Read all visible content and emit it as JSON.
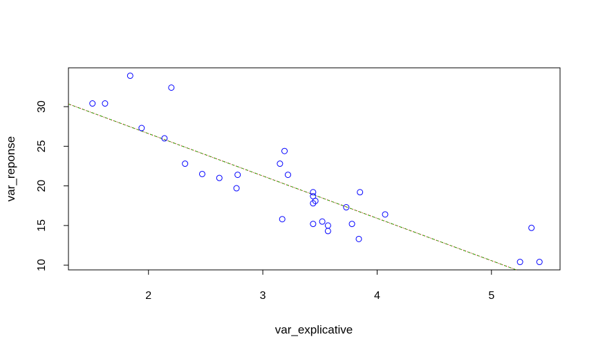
{
  "chart_data": {
    "type": "scatter",
    "title": "",
    "xlabel": "var_explicative",
    "ylabel": "var_reponse",
    "xlim": [
      1.3,
      5.6
    ],
    "ylim": [
      9.4,
      34.9
    ],
    "xticks": [
      2,
      3,
      4,
      5
    ],
    "yticks": [
      10,
      15,
      20,
      25,
      30
    ],
    "grid": false,
    "legend": "none",
    "point_color": "#0000ff",
    "points": [
      {
        "x": 1.51,
        "y": 30.4
      },
      {
        "x": 1.62,
        "y": 30.4
      },
      {
        "x": 1.84,
        "y": 33.9
      },
      {
        "x": 1.94,
        "y": 27.3
      },
      {
        "x": 2.14,
        "y": 26.0
      },
      {
        "x": 2.2,
        "y": 32.4
      },
      {
        "x": 2.32,
        "y": 22.8
      },
      {
        "x": 2.47,
        "y": 21.5
      },
      {
        "x": 2.62,
        "y": 21.0
      },
      {
        "x": 2.77,
        "y": 19.7
      },
      {
        "x": 2.78,
        "y": 21.4
      },
      {
        "x": 3.15,
        "y": 22.8
      },
      {
        "x": 3.17,
        "y": 15.8
      },
      {
        "x": 3.19,
        "y": 24.4
      },
      {
        "x": 3.22,
        "y": 21.4
      },
      {
        "x": 3.44,
        "y": 18.7
      },
      {
        "x": 3.44,
        "y": 19.2
      },
      {
        "x": 3.44,
        "y": 17.8
      },
      {
        "x": 3.44,
        "y": 15.2
      },
      {
        "x": 3.46,
        "y": 18.1
      },
      {
        "x": 3.52,
        "y": 15.5
      },
      {
        "x": 3.57,
        "y": 14.3
      },
      {
        "x": 3.57,
        "y": 15.0
      },
      {
        "x": 3.73,
        "y": 17.3
      },
      {
        "x": 3.78,
        "y": 15.2
      },
      {
        "x": 3.84,
        "y": 13.3
      },
      {
        "x": 3.85,
        "y": 19.2
      },
      {
        "x": 4.07,
        "y": 16.4
      },
      {
        "x": 5.25,
        "y": 10.4
      },
      {
        "x": 5.35,
        "y": 14.7
      },
      {
        "x": 5.42,
        "y": 10.4
      }
    ],
    "lines": [
      {
        "color": "#00cc00",
        "dash": "dashed",
        "intercept": 37.285,
        "slope": -5.344
      },
      {
        "color": "#cc0000",
        "dash": "dotted",
        "intercept": 37.285,
        "slope": -5.344
      }
    ]
  }
}
